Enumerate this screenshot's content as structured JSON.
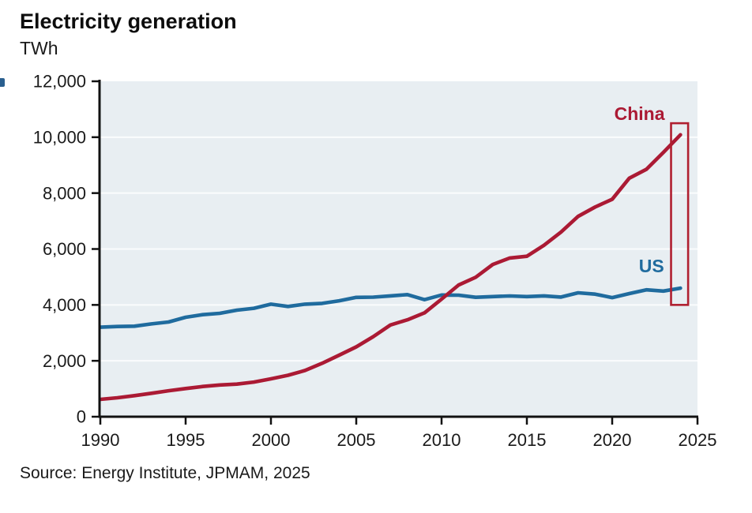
{
  "header": {
    "title": "Electricity generation",
    "subtitle": "TWh"
  },
  "footer": {
    "source": "Source: Energy Institute, JPMAM, 2025"
  },
  "colors": {
    "china_line": "#ab1a34",
    "us_line": "#1f6b9e",
    "plot_background": "#e8eef2",
    "gridline": "#fafcfd",
    "axis": "#111111",
    "highlight_box": "#b01f30",
    "text": "#1a1a1a"
  },
  "chart_data": {
    "type": "line",
    "title": "Electricity generation",
    "ylabel": "TWh",
    "xlabel": "",
    "xlim": [
      1990,
      2025
    ],
    "ylim": [
      0,
      12000
    ],
    "grid": "horizontal-white",
    "x_ticks": [
      "1990",
      "1995",
      "2000",
      "2005",
      "2010",
      "2015",
      "2020",
      "2025"
    ],
    "x_tick_values": [
      1990,
      1995,
      2000,
      2005,
      2010,
      2015,
      2020,
      2025
    ],
    "y_ticks": [
      "0",
      "2,000",
      "4,000",
      "6,000",
      "8,000",
      "10,000",
      "12,000"
    ],
    "y_tick_values": [
      0,
      2000,
      4000,
      6000,
      8000,
      10000,
      12000
    ],
    "years": [
      1990,
      1991,
      1992,
      1993,
      1994,
      1995,
      1996,
      1997,
      1998,
      1999,
      2000,
      2001,
      2002,
      2003,
      2004,
      2005,
      2006,
      2007,
      2008,
      2009,
      2010,
      2011,
      2012,
      2013,
      2014,
      2015,
      2016,
      2017,
      2018,
      2019,
      2020,
      2021,
      2022,
      2023,
      2024
    ],
    "series": [
      {
        "name": "China",
        "color": "#ab1a34",
        "values": [
          621,
          678,
          754,
          839,
          928,
          1008,
          1081,
          1136,
          1167,
          1239,
          1356,
          1481,
          1654,
          1911,
          2203,
          2500,
          2866,
          3282,
          3467,
          3715,
          4207,
          4713,
          4988,
          5447,
          5678,
          5740,
          6133,
          6604,
          7166,
          7503,
          7779,
          8534,
          8849,
          9456,
          10087
        ]
      },
      {
        "name": "US",
        "color": "#1f6b9e",
        "values": [
          3203,
          3226,
          3240,
          3321,
          3388,
          3558,
          3652,
          3699,
          3813,
          3879,
          4026,
          3944,
          4026,
          4054,
          4148,
          4268,
          4277,
          4322,
          4369,
          4188,
          4354,
          4349,
          4271,
          4297,
          4319,
          4297,
          4322,
          4281,
          4434,
          4385,
          4260,
          4406,
          4539,
          4494,
          4600
        ]
      }
    ],
    "annotations": [
      {
        "text": "China",
        "year": 2021.6,
        "value": 10850,
        "color": "#ab1a34"
      },
      {
        "text": "US",
        "year": 2022.3,
        "value": 5400,
        "color": "#1f6b9e"
      }
    ],
    "highlight_box": {
      "year_range": [
        2023.45,
        2024.45
      ],
      "value_range": [
        4000,
        10500
      ],
      "color": "#b01f30"
    },
    "legend_position": "inline-labels"
  }
}
